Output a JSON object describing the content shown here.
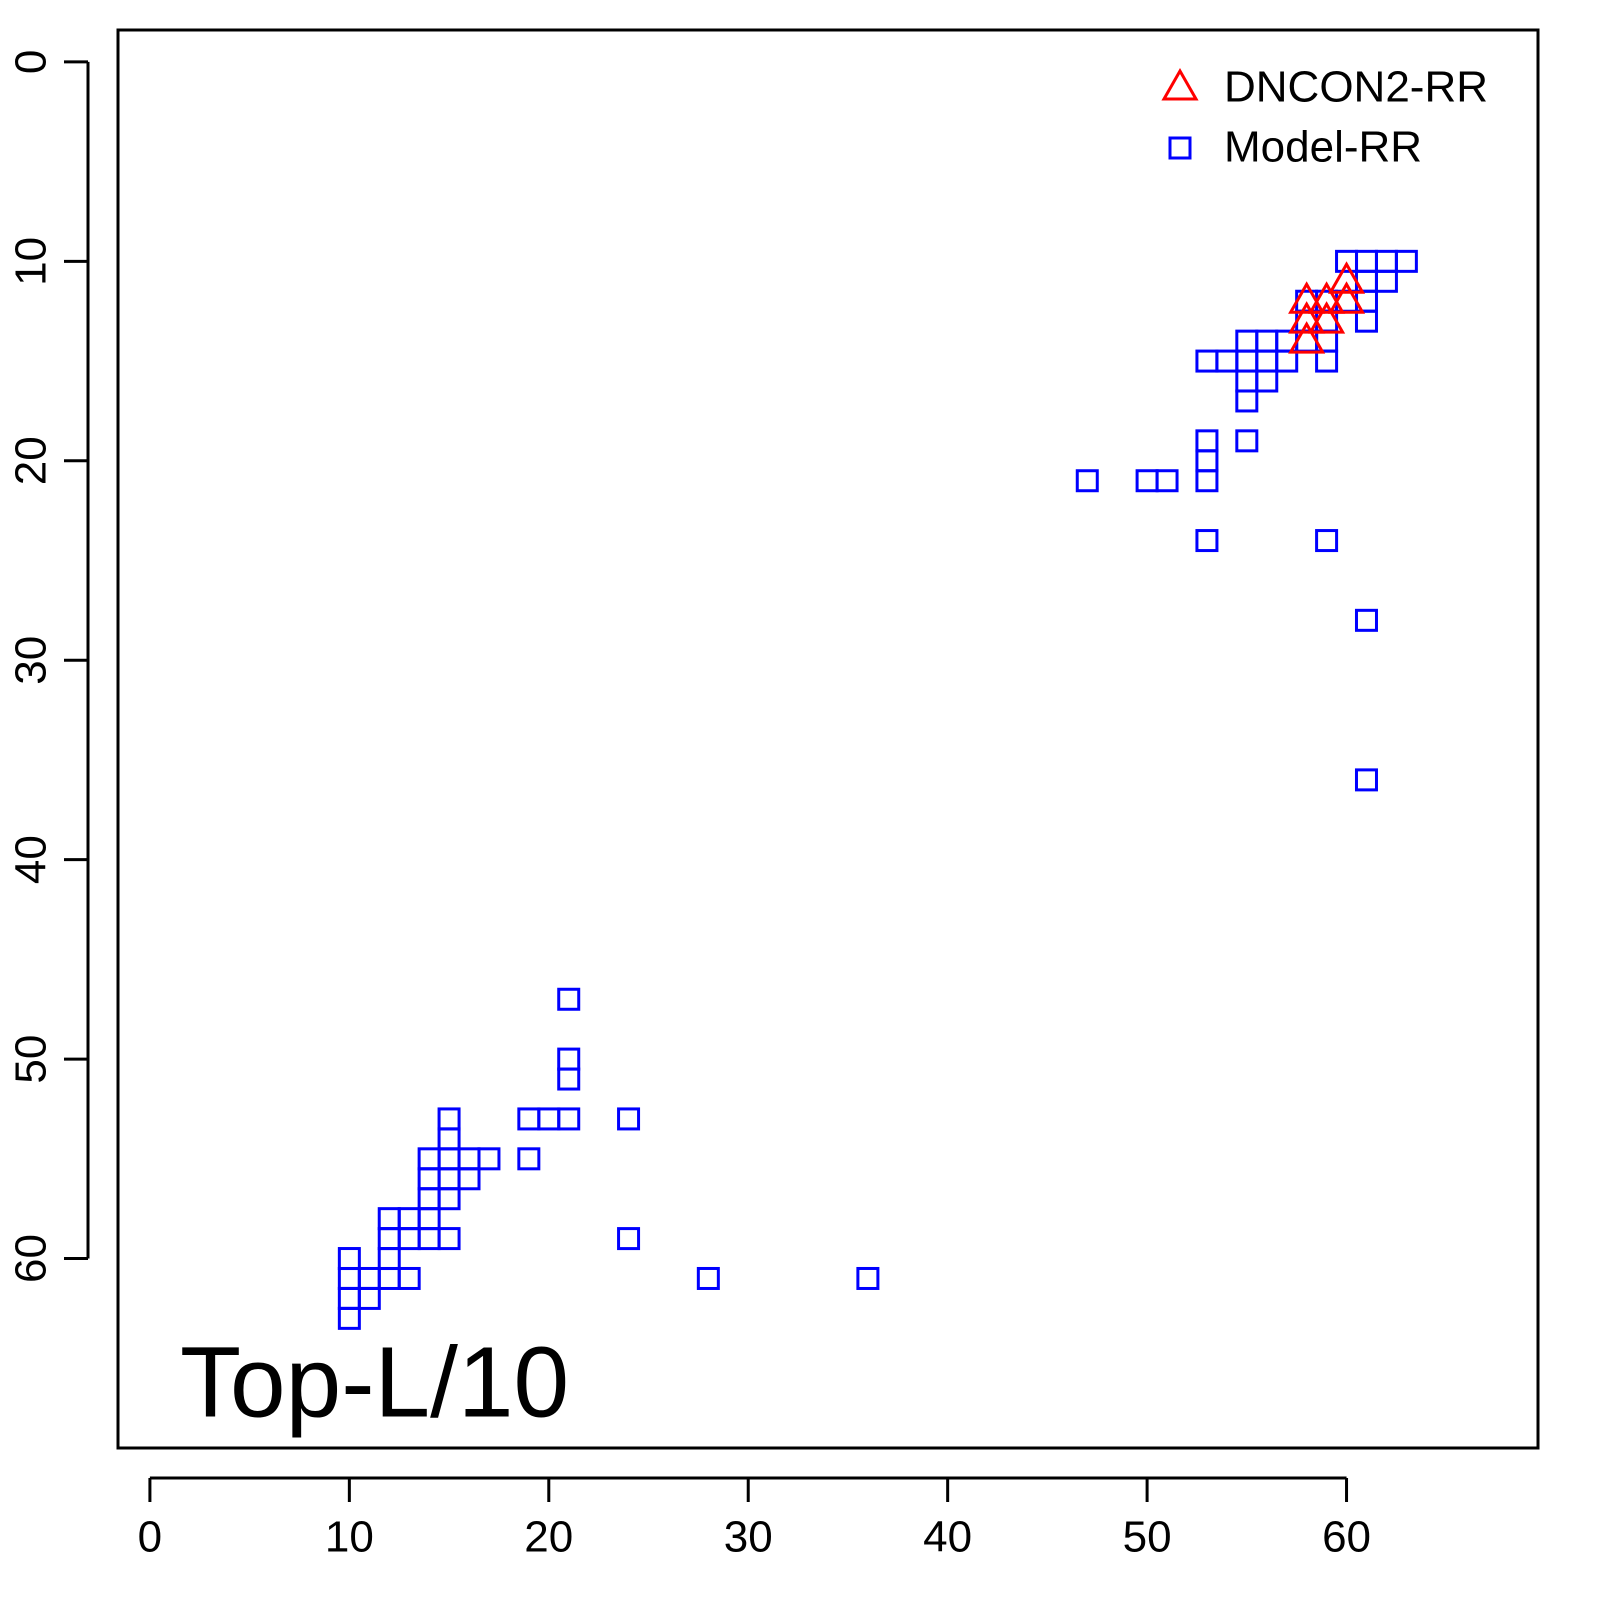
{
  "chart_data": {
    "type": "scatter",
    "annotation": "Top-L/10",
    "xlim": [
      -1.6,
      69.6
    ],
    "ylim": [
      69.5,
      -1.6
    ],
    "xticks": [
      0,
      10,
      20,
      30,
      40,
      50,
      60
    ],
    "yticks": [
      0,
      10,
      20,
      30,
      40,
      50,
      60
    ],
    "legend": "top-right",
    "series": [
      {
        "name": "DNCON2-RR",
        "color": "#ff0000",
        "marker": "triangle",
        "x": [
          60,
          58,
          59,
          60,
          58,
          59,
          58
        ],
        "y": [
          11,
          12,
          12,
          12,
          13,
          13,
          14
        ]
      },
      {
        "name": "Model-RR",
        "color": "#0000ff",
        "marker": "square",
        "x": [
          60,
          61,
          62,
          63,
          61,
          62,
          58,
          59,
          60,
          61,
          58,
          59,
          61,
          55,
          56,
          57,
          58,
          59,
          53,
          54,
          55,
          56,
          57,
          59,
          55,
          56,
          55,
          53,
          55,
          53,
          47,
          50,
          51,
          53,
          53,
          59,
          61,
          61,
          21,
          21,
          21,
          15,
          19,
          20,
          21,
          24,
          15,
          14,
          15,
          16,
          17,
          19,
          14,
          15,
          16,
          14,
          15,
          12,
          13,
          14,
          12,
          13,
          14,
          15,
          24,
          10,
          12,
          10,
          11,
          12,
          13,
          28,
          36,
          10,
          11,
          10
        ],
        "y": [
          10,
          10,
          10,
          10,
          11,
          11,
          12,
          12,
          12,
          12,
          13,
          13,
          13,
          14,
          14,
          14,
          14,
          14,
          15,
          15,
          15,
          15,
          15,
          15,
          16,
          16,
          17,
          19,
          19,
          20,
          21,
          21,
          21,
          21,
          24,
          24,
          28,
          36,
          47,
          50,
          51,
          53,
          53,
          53,
          53,
          53,
          54,
          55,
          55,
          55,
          55,
          55,
          56,
          56,
          56,
          57,
          57,
          58,
          58,
          58,
          59,
          59,
          59,
          59,
          59,
          60,
          60,
          61,
          61,
          61,
          61,
          61,
          61,
          62,
          62,
          63
        ]
      }
    ]
  }
}
